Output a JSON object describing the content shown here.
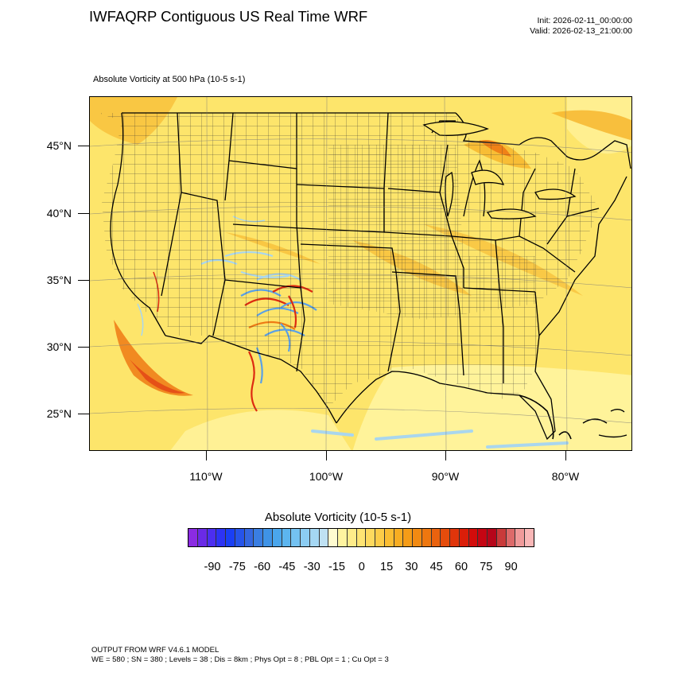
{
  "header": {
    "title": "IWFAQRP Contiguous US Real Time WRF",
    "init": "Init: 2026-02-11_00:00:00",
    "valid": "Valid: 2026-02-13_21:00:00"
  },
  "field_title": "Absolute Vorticity at 500 hPa   (10-5 s-1)",
  "map": {
    "lat_labels": [
      "45°N",
      "40°N",
      "35°N",
      "30°N",
      "25°N"
    ],
    "lon_labels": [
      "110°W",
      "100°W",
      "90°W",
      "80°W"
    ],
    "colors": {
      "background_yellow": "#fde56b",
      "light_yellow": "#fff4a0",
      "orange": "#f6b328",
      "deep_orange": "#ee7a14",
      "red": "#dd2a10",
      "light_blue": "#a9d6ee",
      "blue": "#5aa0e6"
    }
  },
  "colorbar": {
    "title": "Absolute Vorticity  (10-5 s-1)",
    "labels": [
      "-90",
      "-75",
      "-60",
      "-45",
      "-30",
      "-15",
      "0",
      "15",
      "30",
      "45",
      "60",
      "75",
      "90"
    ],
    "colors": [
      "#8b2be2",
      "#6a2ae6",
      "#4c2ef0",
      "#2d33f5",
      "#1a3ff5",
      "#2654ea",
      "#3467e0",
      "#3a7ee2",
      "#3f93e6",
      "#4aa6ec",
      "#5cb5ef",
      "#74c2f2",
      "#8ccdf3",
      "#a5d7f3",
      "#bfe1f3",
      "#fffbd0",
      "#fff4a0",
      "#ffec8a",
      "#ffe473",
      "#fed95e",
      "#fdcc48",
      "#fbbd32",
      "#f8ad22",
      "#f59c17",
      "#f28a12",
      "#ee770f",
      "#ea620e",
      "#e54c0c",
      "#e0350b",
      "#db1e09",
      "#d30c0b",
      "#c50513",
      "#b6061a",
      "#c93a3a",
      "#dd6a6a",
      "#f09a9a",
      "#f9b7b7"
    ]
  },
  "footer": {
    "line1": "OUTPUT FROM WRF V4.6.1 MODEL",
    "line2": "WE = 580 ; SN = 380 ; Levels = 38 ; Dis = 8km ; Phys Opt = 8 ; PBL Opt = 1 ; Cu Opt = 3"
  }
}
